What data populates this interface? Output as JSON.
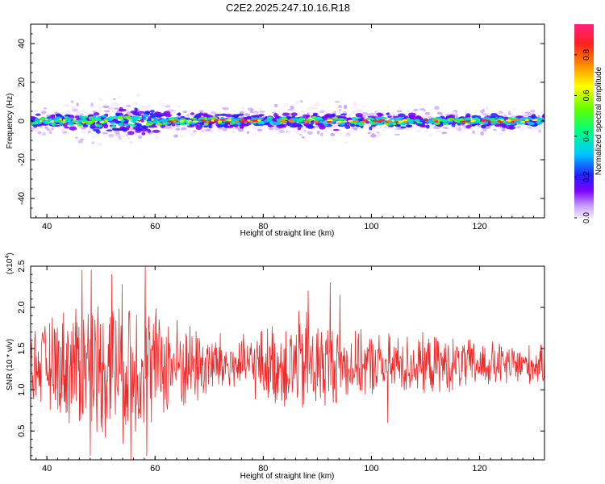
{
  "title": "C2E2.2025.247.10.16.R18",
  "chart_data": [
    {
      "type": "heatmap",
      "title": "C2E2.2025.247.10.16.R18",
      "xlabel": "Height of straight line (km)",
      "ylabel": "Frequency (Hz)",
      "xlim": [
        37,
        132
      ],
      "ylim": [
        -50,
        50
      ],
      "xticks": [
        "40",
        "60",
        "80",
        "100",
        "120"
      ],
      "yticks": [
        "-40",
        "-20",
        "0",
        "20",
        "40"
      ],
      "grid": false,
      "description_band": {
        "center_frequency_hz": 0,
        "spread_hz_by_height": [
          {
            "height_km": 37,
            "half_width_hz": 4
          },
          {
            "height_km": 45,
            "half_width_hz": 6
          },
          {
            "height_km": 52,
            "half_width_hz": 8
          },
          {
            "height_km": 58,
            "half_width_hz": 9
          },
          {
            "height_km": 62,
            "half_width_hz": 5
          },
          {
            "height_km": 80,
            "half_width_hz": 4
          },
          {
            "height_km": 92,
            "half_width_hz": 6
          },
          {
            "height_km": 110,
            "half_width_hz": 4
          },
          {
            "height_km": 132,
            "half_width_hz": 4
          }
        ]
      },
      "colorbar": {
        "label": "Normalized spectral amplitude",
        "range": [
          0.0,
          0.95
        ],
        "ticks": [
          "0.0",
          "0.2",
          "0.4",
          "0.6",
          "0.8"
        ],
        "colors": [
          "#f4e8ff",
          "#c8a0ff",
          "#7a00ff",
          "#2020ff",
          "#00c8ff",
          "#00ff80",
          "#60ff00",
          "#ffff00",
          "#ff8000",
          "#ff2020",
          "#ff2080"
        ]
      }
    },
    {
      "type": "line",
      "xlabel": "Height of straight line (km)",
      "ylabel": "SNR (10 * v/v)",
      "scale_label": "(x10",
      "scale_exponent": "4",
      "scale_close": ")",
      "xlim": [
        37,
        132
      ],
      "ylim": [
        0.15,
        2.5
      ],
      "xticks": [
        "40",
        "60",
        "80",
        "100",
        "120"
      ],
      "yticks": [
        "0.5",
        "1.0",
        "1.5",
        "2.0",
        "2.5"
      ],
      "series": [
        {
          "name": "SNR",
          "color": "#ee2a2a",
          "baseline": 1.3,
          "amplitude_by_height": [
            {
              "height_km": 37,
              "amp": 0.45
            },
            {
              "height_km": 45,
              "amp": 0.85
            },
            {
              "height_km": 55,
              "amp": 1.05
            },
            {
              "height_km": 62,
              "amp": 0.7
            },
            {
              "height_km": 75,
              "amp": 0.35
            },
            {
              "height_km": 88,
              "amp": 0.75
            },
            {
              "height_km": 95,
              "amp": 0.45
            },
            {
              "height_km": 110,
              "amp": 0.4
            },
            {
              "height_km": 132,
              "amp": 0.25
            }
          ],
          "peaks": [
            {
              "x": 46.5,
              "y": 2.45
            },
            {
              "x": 48.2,
              "y": 2.45
            },
            {
              "x": 52.0,
              "y": 2.4
            },
            {
              "x": 58.2,
              "y": 2.5
            },
            {
              "x": 88.3,
              "y": 2.2
            },
            {
              "x": 92.4,
              "y": 2.3
            },
            {
              "x": 94.2,
              "y": 2.15
            }
          ],
          "troughs": [
            {
              "x": 48.0,
              "y": 0.2
            },
            {
              "x": 55.5,
              "y": 0.15
            },
            {
              "x": 58.5,
              "y": 0.2
            },
            {
              "x": 103.0,
              "y": 0.6
            }
          ]
        }
      ]
    }
  ]
}
